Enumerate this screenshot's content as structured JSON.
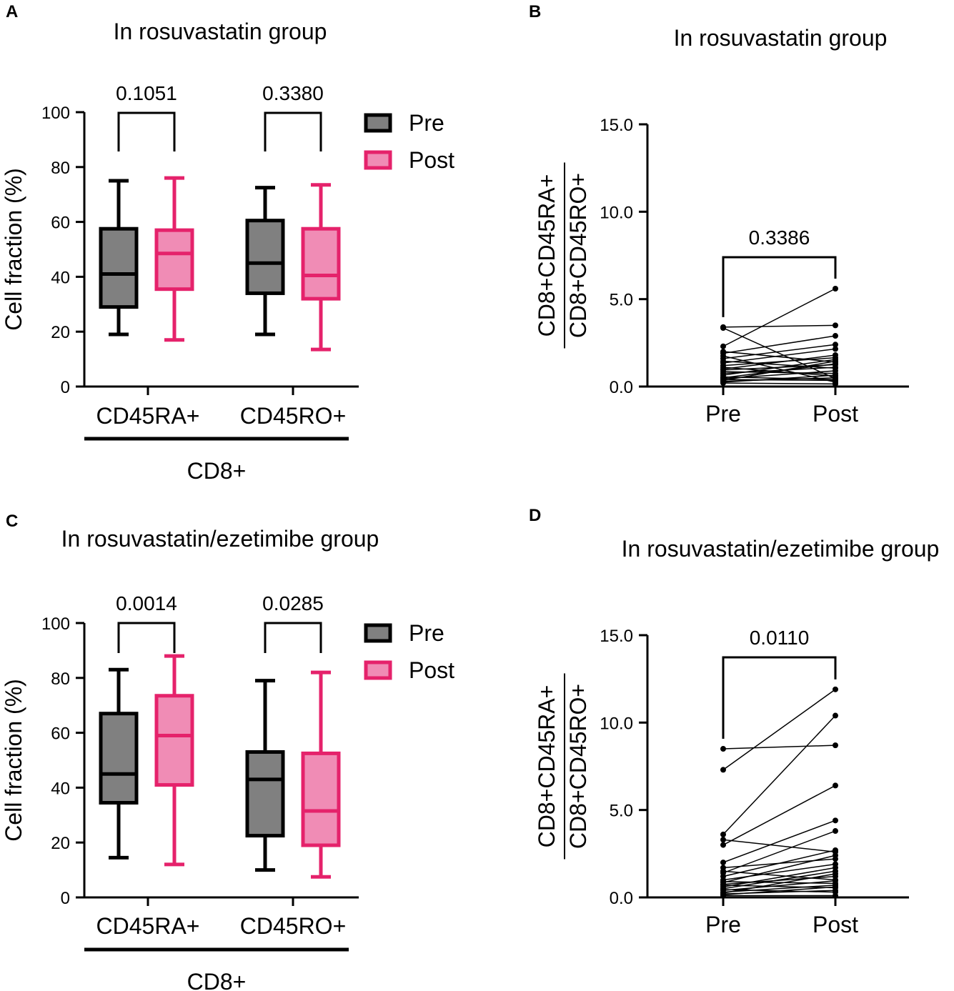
{
  "colors": {
    "pre_fill": "#808080",
    "pre_stroke": "#000000",
    "post_fill": "#F08CB5",
    "post_stroke": "#E5226B"
  },
  "chart_data": [
    {
      "id": "A",
      "panel_label": "A",
      "type": "box",
      "title": "In rosuvastatin group",
      "ylabel": "Cell fraction (%)",
      "ylim": [
        0,
        100
      ],
      "yticks": [
        "0",
        "20",
        "40",
        "60",
        "80",
        "100"
      ],
      "categories": [
        "CD45RA+",
        "CD45RO+"
      ],
      "group_label": "CD8+",
      "legend": [
        "Pre",
        "Post"
      ],
      "boxes": [
        {
          "category": "CD45RA+",
          "series": "Pre",
          "min": 19,
          "q1": 29,
          "median": 41,
          "q3": 57.5,
          "max": 75
        },
        {
          "category": "CD45RA+",
          "series": "Post",
          "min": 17,
          "q1": 35.5,
          "median": 48.5,
          "q3": 57,
          "max": 76
        },
        {
          "category": "CD45RO+",
          "series": "Pre",
          "min": 19,
          "q1": 34,
          "median": 45,
          "q3": 60.5,
          "max": 72.5
        },
        {
          "category": "CD45RO+",
          "series": "Post",
          "min": 13.5,
          "q1": 32,
          "median": 40.5,
          "q3": 57.5,
          "max": 73.5
        }
      ],
      "pvalues": [
        {
          "category": "CD45RA+",
          "text": "0.1051"
        },
        {
          "category": "CD45RO+",
          "text": "0.3380"
        }
      ]
    },
    {
      "id": "B",
      "panel_label": "B",
      "type": "paired-line",
      "title": "In rosuvastatin group",
      "ylabel_top": "CD8+CD45RA+",
      "ylabel_bottom": "CD8+CD45RO+",
      "ylim": [
        0,
        15
      ],
      "yticks": [
        "0.0",
        "5.0",
        "10.0",
        "15.0"
      ],
      "categories": [
        "Pre",
        "Post"
      ],
      "pvalue": "0.3386",
      "pairs": [
        [
          3.4,
          3.5
        ],
        [
          3.35,
          0.45
        ],
        [
          2.3,
          5.6
        ],
        [
          2.0,
          1.4
        ],
        [
          1.9,
          2.9
        ],
        [
          1.75,
          0.25
        ],
        [
          1.6,
          2.4
        ],
        [
          1.45,
          1.05
        ],
        [
          1.35,
          2.15
        ],
        [
          1.2,
          1.65
        ],
        [
          1.1,
          0.6
        ],
        [
          1.0,
          1.8
        ],
        [
          0.95,
          1.25
        ],
        [
          0.85,
          0.75
        ],
        [
          0.75,
          1.1
        ],
        [
          0.65,
          1.55
        ],
        [
          0.55,
          0.4
        ],
        [
          0.5,
          1.3
        ],
        [
          0.45,
          0.9
        ],
        [
          0.4,
          0.35
        ],
        [
          0.35,
          1.45
        ],
        [
          0.3,
          0.5
        ],
        [
          0.25,
          0.65
        ],
        [
          0.2,
          0.15
        ]
      ]
    },
    {
      "id": "C",
      "panel_label": "C",
      "type": "box",
      "title": "In rosuvastatin/ezetimibe group",
      "ylabel": "Cell fraction (%)",
      "ylim": [
        0,
        100
      ],
      "yticks": [
        "0",
        "20",
        "40",
        "60",
        "80",
        "100"
      ],
      "categories": [
        "CD45RA+",
        "CD45RO+"
      ],
      "group_label": "CD8+",
      "legend": [
        "Pre",
        "Post"
      ],
      "boxes": [
        {
          "category": "CD45RA+",
          "series": "Pre",
          "min": 14.5,
          "q1": 34.5,
          "median": 45,
          "q3": 67,
          "max": 83
        },
        {
          "category": "CD45RA+",
          "series": "Post",
          "min": 12,
          "q1": 41,
          "median": 59,
          "q3": 73.5,
          "max": 88
        },
        {
          "category": "CD45RO+",
          "series": "Pre",
          "min": 10,
          "q1": 22.5,
          "median": 43,
          "q3": 53,
          "max": 79
        },
        {
          "category": "CD45RO+",
          "series": "Post",
          "min": 7.5,
          "q1": 19,
          "median": 31.5,
          "q3": 52.5,
          "max": 82
        }
      ],
      "pvalues": [
        {
          "category": "CD45RA+",
          "text": "0.0014"
        },
        {
          "category": "CD45RO+",
          "text": "0.0285"
        }
      ]
    },
    {
      "id": "D",
      "panel_label": "D",
      "type": "paired-line",
      "title": "In rosuvastatin/ezetimibe group",
      "ylabel_top": "CD8+CD45RA+",
      "ylabel_bottom": "CD8+CD45RO+",
      "ylim": [
        0,
        15
      ],
      "yticks": [
        "0.0",
        "5.0",
        "10.0",
        "15.0"
      ],
      "categories": [
        "Pre",
        "Post"
      ],
      "pvalue": "0.0110",
      "pairs": [
        [
          8.5,
          8.7
        ],
        [
          7.3,
          11.9
        ],
        [
          3.6,
          10.4
        ],
        [
          3.3,
          2.6
        ],
        [
          3.0,
          6.4
        ],
        [
          2.0,
          4.4
        ],
        [
          1.7,
          2.2
        ],
        [
          1.5,
          1.0
        ],
        [
          1.4,
          3.8
        ],
        [
          1.2,
          2.7
        ],
        [
          1.0,
          1.9
        ],
        [
          0.9,
          0.8
        ],
        [
          0.85,
          2.4
        ],
        [
          0.75,
          1.2
        ],
        [
          0.7,
          0.55
        ],
        [
          0.6,
          1.7
        ],
        [
          0.5,
          1.5
        ],
        [
          0.45,
          0.3
        ],
        [
          0.4,
          0.95
        ],
        [
          0.3,
          0.7
        ],
        [
          0.25,
          1.35
        ],
        [
          0.2,
          0.4
        ],
        [
          0.15,
          0.6
        ],
        [
          0.1,
          0.1
        ]
      ]
    }
  ]
}
